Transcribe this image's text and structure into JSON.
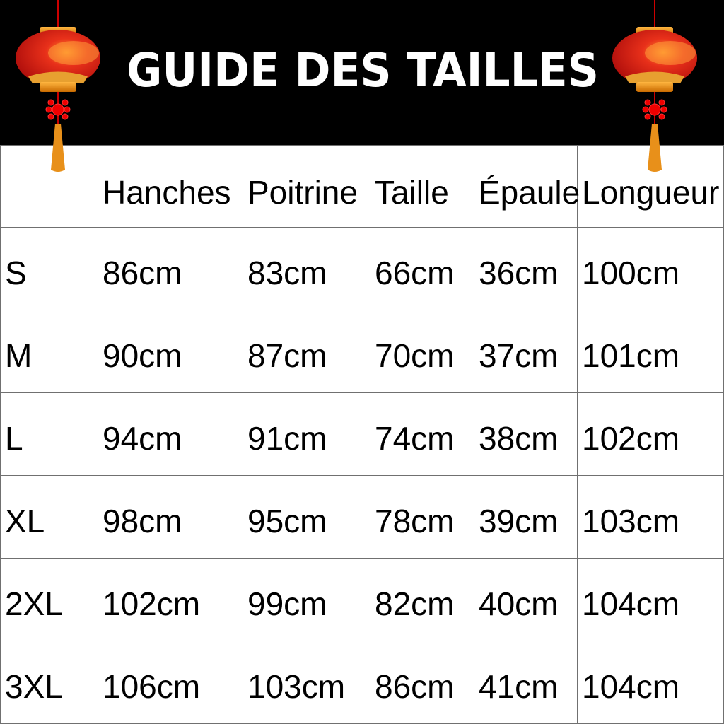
{
  "header": {
    "title": "GUIDE DES TAILLES",
    "background": "#000000",
    "icons": [
      "chinese-lantern-icon",
      "chinese-lantern-icon"
    ]
  },
  "table": {
    "columns": [
      "",
      "Hanches",
      "Poitrine",
      "Taille",
      "Épaule",
      "Longueur"
    ],
    "rows": [
      [
        "S",
        "86cm",
        "83cm",
        "66cm",
        "36cm",
        "100cm"
      ],
      [
        "M",
        "90cm",
        "87cm",
        "70cm",
        "37cm",
        "101cm"
      ],
      [
        "L",
        "94cm",
        "91cm",
        "74cm",
        "38cm",
        "102cm"
      ],
      [
        "XL",
        "98cm",
        "95cm",
        "78cm",
        "39cm",
        "103cm"
      ],
      [
        "2XL",
        "102cm",
        "99cm",
        "82cm",
        "40cm",
        "104cm"
      ],
      [
        "3XL",
        "106cm",
        "103cm",
        "86cm",
        "41cm",
        "104cm"
      ]
    ]
  }
}
